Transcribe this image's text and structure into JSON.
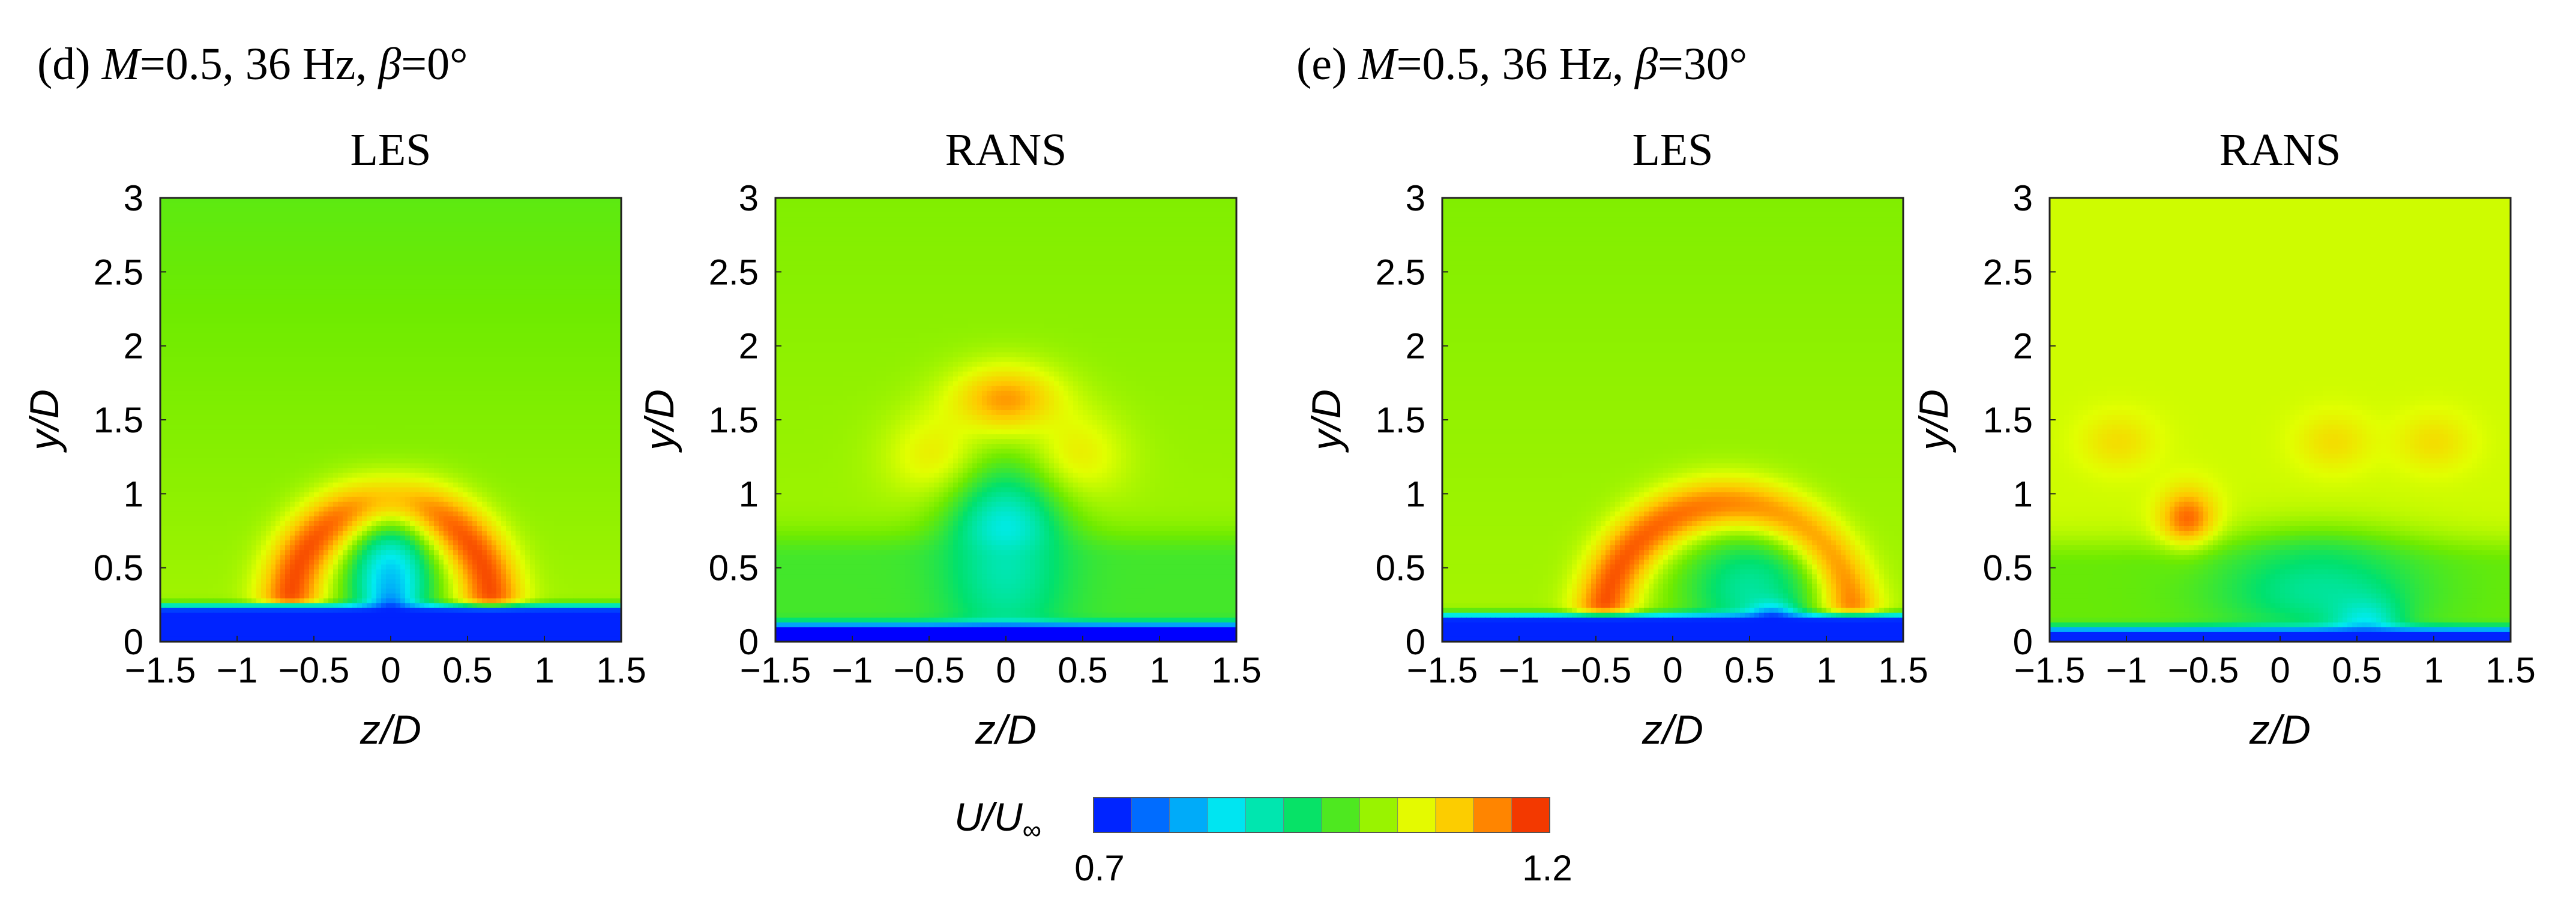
{
  "captions": {
    "d": {
      "prefix": "(d) ",
      "m_sym": "M",
      "m_val": "=0.5, 36 Hz, ",
      "b_sym": "β",
      "b_val": "=0°"
    },
    "e": {
      "prefix": "(e) ",
      "m_sym": "M",
      "m_val": "=0.5, 36 Hz, ",
      "b_sym": "β",
      "b_val": "=30°"
    }
  },
  "chart_data": [
    {
      "type": "heatmap",
      "id": "d-les",
      "title": "LES",
      "xlabel": "z/D",
      "ylabel": "y/D",
      "xlim": [
        -1.5,
        1.5
      ],
      "ylim": [
        0,
        3
      ],
      "xticks": [
        -1.5,
        -1,
        -0.5,
        0,
        0.5,
        1,
        1.5
      ],
      "yticks": [
        0,
        0.5,
        1,
        1.5,
        2,
        2.5,
        3
      ],
      "background_value": 1.02,
      "top_value": 0.98,
      "features": [
        {
          "type": "arc",
          "zc": 0.0,
          "yc": 0.25,
          "radius": 0.65,
          "thickness": 0.42,
          "theta": [
            -20,
            200
          ],
          "value": 1.17
        },
        {
          "type": "blob",
          "z": 0.0,
          "y": 0.4,
          "rz": 0.26,
          "ry": 0.42,
          "value": 0.82
        },
        {
          "type": "blob",
          "z": 0.0,
          "y": 0.15,
          "rz": 0.1,
          "ry": 0.15,
          "value": 0.72
        },
        {
          "type": "band",
          "y0": 0,
          "y1": 0.2,
          "value": 0.72,
          "center_dip": 0.7
        }
      ]
    },
    {
      "type": "heatmap",
      "id": "d-rans",
      "title": "RANS",
      "xlabel": "z/D",
      "ylabel": "y/D",
      "xlim": [
        -1.5,
        1.5
      ],
      "ylim": [
        0,
        3
      ],
      "xticks": [
        -1.5,
        -1,
        -0.5,
        0,
        0.5,
        1,
        1.5
      ],
      "yticks": [
        0,
        0.5,
        1,
        1.5,
        2,
        2.5,
        3
      ],
      "background_value": 1.02,
      "top_value": 1.0,
      "features": [
        {
          "type": "blob",
          "z": 0.0,
          "y": 1.6,
          "rz": 0.35,
          "ry": 0.25,
          "value": 1.15
        },
        {
          "type": "blob",
          "z": -0.4,
          "y": 1.25,
          "rz": 0.35,
          "ry": 0.3,
          "value": 1.08
        },
        {
          "type": "blob",
          "z": 0.4,
          "y": 1.25,
          "rz": 0.35,
          "ry": 0.3,
          "value": 1.08
        },
        {
          "type": "blob",
          "z": 0.0,
          "y": 0.55,
          "rz": 0.38,
          "ry": 0.62,
          "value": 0.82
        },
        {
          "type": "layer",
          "y0": 0,
          "y1": 0.55,
          "value": 0.93
        },
        {
          "type": "band",
          "y0": 0,
          "y1": 0.08,
          "value": 0.7
        }
      ]
    },
    {
      "type": "heatmap",
      "id": "e-les",
      "title": "LES",
      "xlabel": "z/D",
      "ylabel": "y/D",
      "xlim": [
        -1.5,
        1.5
      ],
      "ylim": [
        0,
        3
      ],
      "xticks": [
        -1.5,
        -1,
        -0.5,
        0,
        0.5,
        1,
        1.5
      ],
      "yticks": [
        0,
        0.5,
        1,
        1.5,
        2,
        2.5,
        3
      ],
      "background_value": 1.02,
      "top_value": 1.0,
      "features": [
        {
          "type": "arc",
          "zc": 0.35,
          "yc": 0.1,
          "radius": 0.8,
          "thickness": 0.4,
          "theta": [
            -30,
            175
          ],
          "value": 1.17
        },
        {
          "type": "blob",
          "z": 0.5,
          "y": 0.35,
          "rz": 0.45,
          "ry": 0.4,
          "value": 0.9
        },
        {
          "type": "blob",
          "z": 0.65,
          "y": 0.12,
          "rz": 0.15,
          "ry": 0.12,
          "value": 0.72
        },
        {
          "type": "band",
          "y0": 0,
          "y1": 0.14,
          "value": 0.72,
          "center_dip": 0.75
        }
      ]
    },
    {
      "type": "heatmap",
      "id": "e-rans",
      "title": "RANS",
      "xlabel": "z/D",
      "ylabel": "y/D",
      "xlim": [
        -1.5,
        1.5
      ],
      "ylim": [
        0,
        3
      ],
      "xticks": [
        -1.5,
        -1,
        -0.5,
        0,
        0.5,
        1,
        1.5
      ],
      "yticks": [
        0,
        0.5,
        1,
        1.5,
        2,
        2.5,
        3
      ],
      "background_value": 1.04,
      "top_value": 1.04,
      "features": [
        {
          "type": "blob",
          "z": -0.6,
          "y": 0.8,
          "rz": 0.18,
          "ry": 0.22,
          "value": 1.17
        },
        {
          "type": "blob",
          "z": -1.05,
          "y": 1.35,
          "rz": 0.25,
          "ry": 0.2,
          "value": 1.08
        },
        {
          "type": "blob",
          "z": 0.35,
          "y": 1.35,
          "rz": 0.25,
          "ry": 0.2,
          "value": 1.08
        },
        {
          "type": "blob",
          "z": 1.0,
          "y": 1.35,
          "rz": 0.25,
          "ry": 0.2,
          "value": 1.08
        },
        {
          "type": "blob",
          "z": 0.25,
          "y": 0.35,
          "rz": 0.65,
          "ry": 0.32,
          "value": 0.83
        },
        {
          "type": "blob",
          "z": 0.55,
          "y": 0.12,
          "rz": 0.22,
          "ry": 0.18,
          "value": 0.7
        },
        {
          "type": "layer",
          "y0": 0,
          "y1": 0.5,
          "value": 0.95
        },
        {
          "type": "band",
          "y0": 0,
          "y1": 0.05,
          "value": 0.72
        }
      ]
    }
  ],
  "colorbar": {
    "label_main": "U/U",
    "label_sub": "∞",
    "min_label": "0.7",
    "max_label": "1.2",
    "min": 0.7,
    "max": 1.2,
    "levels": 12
  }
}
